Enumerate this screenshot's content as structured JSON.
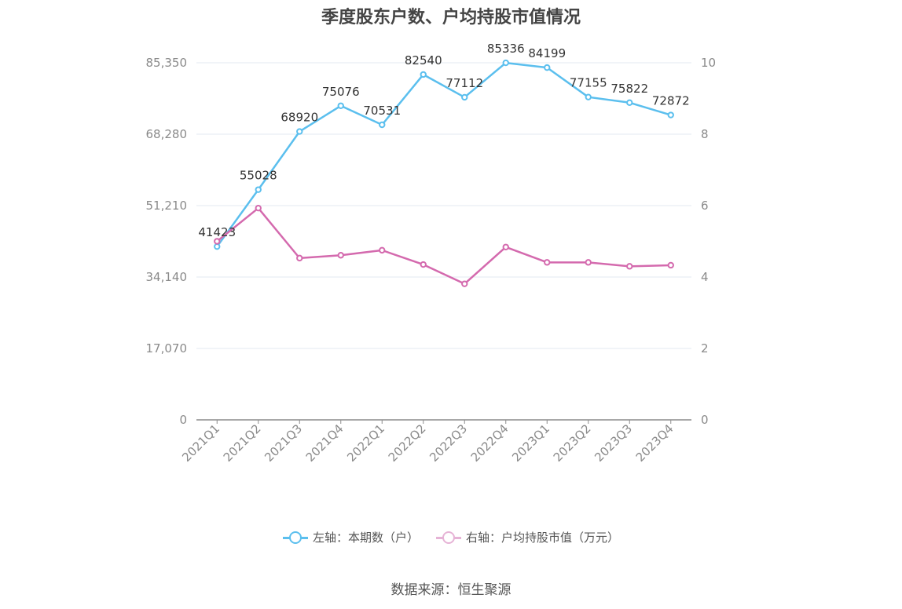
{
  "chart_data": {
    "type": "line",
    "title": "季度股东户数、户均持股市值情况",
    "categories": [
      "2021Q1",
      "2021Q2",
      "2021Q3",
      "2021Q4",
      "2022Q1",
      "2022Q2",
      "2022Q3",
      "2022Q4",
      "2023Q1",
      "2023Q2",
      "2023Q3",
      "2023Q4"
    ],
    "left_axis": {
      "ylim": [
        0,
        85350
      ],
      "ticks": [
        "0",
        "17,070",
        "34,140",
        "51,210",
        "68,280",
        "85,350"
      ]
    },
    "right_axis": {
      "ylim": [
        0,
        10
      ],
      "ticks": [
        "0",
        "2",
        "4",
        "6",
        "8",
        "10"
      ]
    },
    "series": [
      {
        "name": "左轴：本期数（户）",
        "axis": "left",
        "color": "#5bbfee",
        "values": [
          41423,
          55028,
          68920,
          75076,
          70531,
          82540,
          77112,
          85336,
          84199,
          77155,
          75822,
          72872
        ],
        "labels": [
          "41423",
          "55028",
          "68920",
          "75076",
          "70531",
          "82540",
          "77112",
          "85336",
          "84199",
          "77155",
          "75822",
          "72872"
        ]
      },
      {
        "name": "右轴：户均持股市值（万元）",
        "axis": "right",
        "color": "#d46aae",
        "values": [
          5.0,
          5.93,
          4.53,
          4.61,
          4.75,
          4.35,
          3.81,
          4.84,
          4.41,
          4.41,
          4.3,
          4.33
        ]
      }
    ],
    "grid": true,
    "legend_position": "bottom"
  },
  "source": "数据来源：恒生聚源"
}
